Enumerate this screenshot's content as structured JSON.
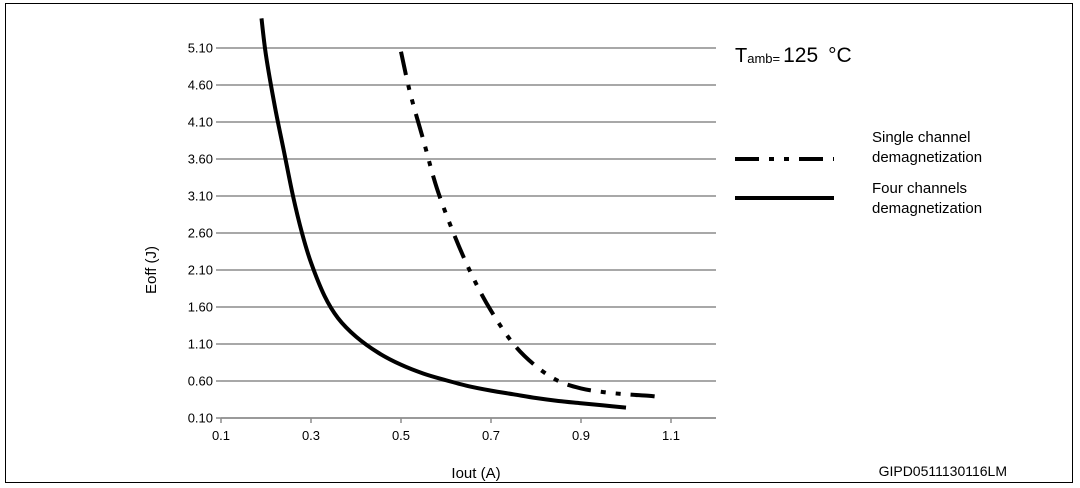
{
  "chart_data": {
    "type": "line",
    "title": "",
    "annotation": {
      "prefix": "T",
      "subscript": "amb=",
      "value": "125",
      "unit": "°C"
    },
    "xlabel": "Iout (A)",
    "ylabel": "Eoff (J)",
    "xlim": [
      0.1,
      1.2
    ],
    "ylim": [
      0.1,
      5.6
    ],
    "x_ticks": [
      "0.1",
      "0.3",
      "0.5",
      "0.7",
      "0.9",
      "1.1"
    ],
    "y_ticks": [
      "0.10",
      "0.60",
      "1.10",
      "1.60",
      "2.10",
      "2.60",
      "3.10",
      "3.60",
      "4.10",
      "4.60",
      "5.10"
    ],
    "grid": "horizontal",
    "legend_position": "right",
    "series": [
      {
        "name": "Single channel demagnetization",
        "legend_lines": [
          "Single channel",
          "demagnetization"
        ],
        "style": "dash-dot-dot",
        "x": [
          0.5,
          0.52,
          0.55,
          0.58,
          0.62,
          0.66,
          0.7,
          0.75,
          0.8,
          0.85,
          0.9,
          0.95,
          1.0,
          1.05,
          1.08
        ],
        "y": [
          5.05,
          4.5,
          3.85,
          3.2,
          2.55,
          2.0,
          1.55,
          1.1,
          0.8,
          0.6,
          0.5,
          0.45,
          0.42,
          0.4,
          0.38
        ]
      },
      {
        "name": "Four channels demagnetization",
        "legend_lines": [
          "Four channels",
          "demagnetization"
        ],
        "style": "solid",
        "x": [
          0.19,
          0.2,
          0.22,
          0.24,
          0.26,
          0.28,
          0.3,
          0.33,
          0.36,
          0.4,
          0.45,
          0.5,
          0.55,
          0.6,
          0.65,
          0.7,
          0.75,
          0.8,
          0.85,
          0.9,
          0.95,
          1.0
        ],
        "y": [
          5.5,
          5.0,
          4.3,
          3.7,
          3.1,
          2.6,
          2.2,
          1.75,
          1.45,
          1.2,
          0.98,
          0.82,
          0.7,
          0.61,
          0.53,
          0.47,
          0.42,
          0.37,
          0.33,
          0.3,
          0.27,
          0.24
        ]
      }
    ],
    "figure_code": "GIPD0511130116LM"
  }
}
